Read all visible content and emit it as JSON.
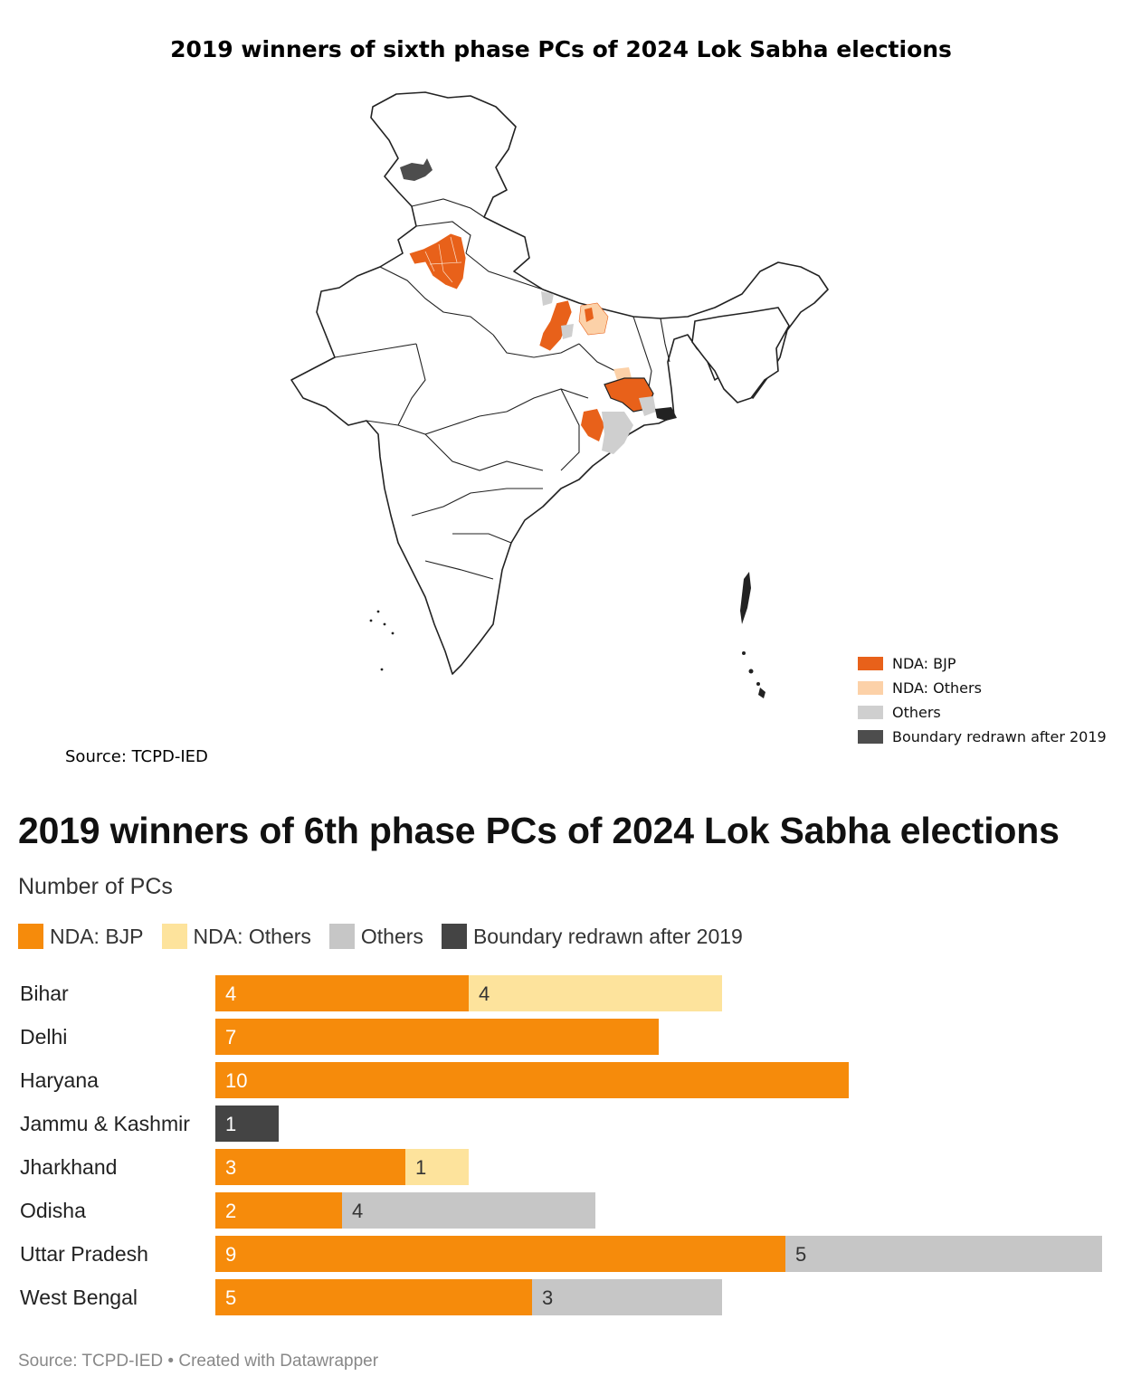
{
  "map": {
    "title": "2019 winners of sixth phase PCs of 2024 Lok Sabha elections",
    "source": "Source: TCPD-IED",
    "legend": [
      {
        "label": "NDA: BJP",
        "color": "#e8611a"
      },
      {
        "label": "NDA: Others",
        "color": "#fcd1a8"
      },
      {
        "label": "Others",
        "color": "#cfcfcf"
      },
      {
        "label": "Boundary redrawn after 2019",
        "color": "#4d4d4d"
      }
    ]
  },
  "chart": {
    "title": "2019 winners of 6th phase PCs of 2024 Lok Sabha elections",
    "subtitle": "Number of PCs",
    "footer": "Source: TCPD-IED • Created with Datawrapper"
  },
  "chart_data": {
    "type": "bar",
    "orientation": "horizontal",
    "stacked": true,
    "title": "2019 winners of 6th phase PCs of 2024 Lok Sabha elections",
    "subtitle": "Number of PCs",
    "categories": [
      "Bihar",
      "Delhi",
      "Haryana",
      "Jammu & Kashmir",
      "Jharkhand",
      "Odisha",
      "Uttar Pradesh",
      "West Bengal"
    ],
    "series": [
      {
        "name": "NDA: BJP",
        "color": "#f68b0b",
        "label_color": "#ffffff",
        "values": [
          4,
          7,
          10,
          0,
          3,
          2,
          9,
          5
        ]
      },
      {
        "name": "NDA: Others",
        "color": "#fde39c",
        "label_color": "#333333",
        "values": [
          4,
          0,
          0,
          0,
          1,
          0,
          0,
          0
        ]
      },
      {
        "name": "Others",
        "color": "#c6c6c6",
        "label_color": "#333333",
        "values": [
          0,
          0,
          0,
          0,
          0,
          4,
          5,
          3
        ]
      },
      {
        "name": "Boundary redrawn after 2019",
        "color": "#444444",
        "label_color": "#ffffff",
        "values": [
          0,
          0,
          0,
          1,
          0,
          0,
          0,
          0
        ]
      }
    ],
    "xlim": [
      0,
      14
    ],
    "legend_position": "top-left",
    "grid": false
  }
}
